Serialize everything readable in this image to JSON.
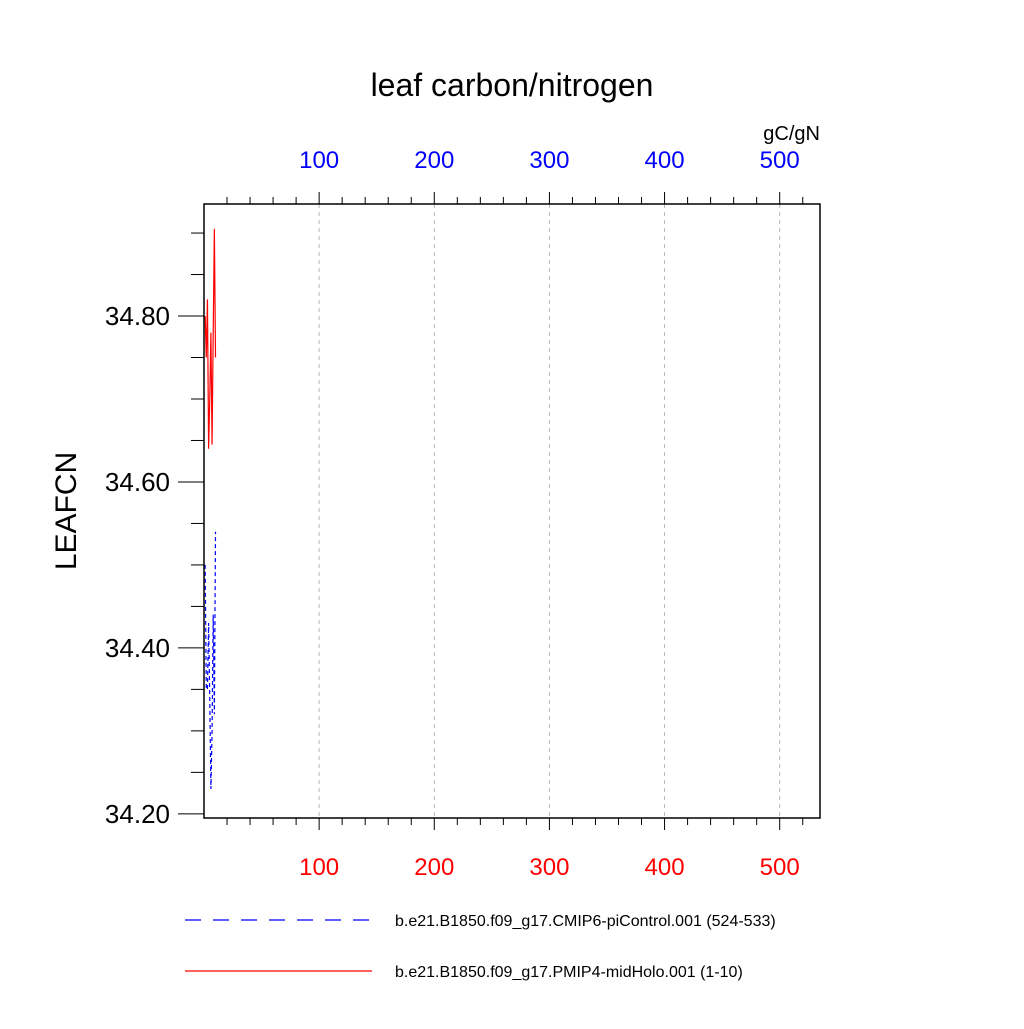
{
  "chart_data": {
    "type": "line",
    "title": "leaf carbon/nitrogen",
    "ylabel": "LEAFCN",
    "units": "gC/gN",
    "xlim": [
      0,
      535
    ],
    "ylim": [
      34.195,
      34.935
    ],
    "grid": "vertical dashed",
    "x_ticks": [
      100,
      200,
      300,
      400,
      500
    ],
    "x_tick_labels": [
      "100",
      "200",
      "300",
      "400",
      "500"
    ],
    "y_ticks": [
      34.2,
      34.4,
      34.6,
      34.8
    ],
    "y_tick_labels": [
      "34.20",
      "34.40",
      "34.60",
      "34.80"
    ],
    "top_axis_color": "#0000ff",
    "bottom_axis_color": "#ff0000",
    "series": [
      {
        "name": "b.e21.B1850.f09_g17.CMIP6-piControl.001 (524-533)",
        "color": "#0000ff",
        "dash": "dashed",
        "x": [
          1,
          2,
          3,
          4,
          5,
          6,
          7,
          8,
          9,
          10
        ],
        "y": [
          34.5,
          34.35,
          34.35,
          34.43,
          34.34,
          34.23,
          34.3,
          34.44,
          34.32,
          34.54
        ]
      },
      {
        "name": "b.e21.B1850.f09_g17.PMIP4-midHolo.001 (1-10)",
        "color": "#ff0000",
        "dash": "solid",
        "x": [
          1,
          2,
          3,
          4,
          5,
          6,
          7,
          8,
          9,
          10
        ],
        "y": [
          34.8,
          34.75,
          34.82,
          34.64,
          34.7,
          34.78,
          34.645,
          34.78,
          34.905,
          34.75
        ]
      }
    ]
  }
}
